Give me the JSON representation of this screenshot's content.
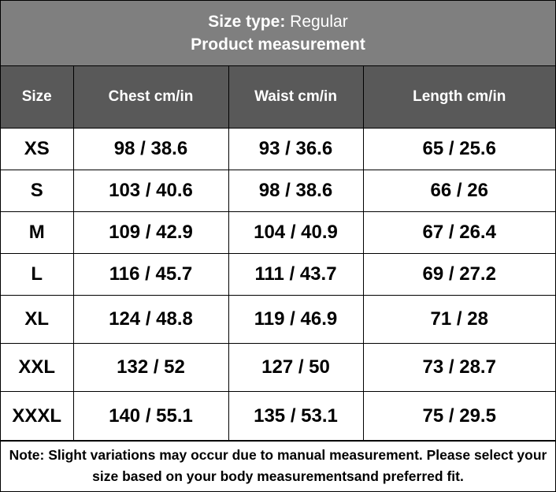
{
  "title": {
    "size_type_label": "Size type:",
    "size_type_value": "Regular",
    "subtitle": "Product measurement"
  },
  "columns": [
    "Size",
    "Chest cm/in",
    "Waist cm/in",
    "Length cm/in"
  ],
  "rows": [
    [
      "XS",
      "98 / 38.6",
      "93 / 36.6",
      "65 / 25.6"
    ],
    [
      "S",
      "103 / 40.6",
      "98 / 38.6",
      "66 / 26"
    ],
    [
      "M",
      "109 / 42.9",
      "104 / 40.9",
      "67 / 26.4"
    ],
    [
      "L",
      "116 / 45.7",
      "111 / 43.7",
      "69 / 27.2"
    ],
    [
      "XL",
      "124 / 48.8",
      "119 / 46.9",
      "71 / 28"
    ],
    [
      "XXL",
      "132 / 52",
      "127 / 50",
      "73 / 28.7"
    ],
    [
      "XXXL",
      "140 / 55.1",
      "135 / 53.1",
      "75 / 29.5"
    ]
  ],
  "note": "Note: Slight variations may occur due to manual measurement. Please select your size based on your body measurementsand preferred fit.",
  "colors": {
    "title_bg": "#7f7f7f",
    "header_bg": "#595959",
    "header_text": "#ffffff",
    "body_text": "#000000"
  }
}
